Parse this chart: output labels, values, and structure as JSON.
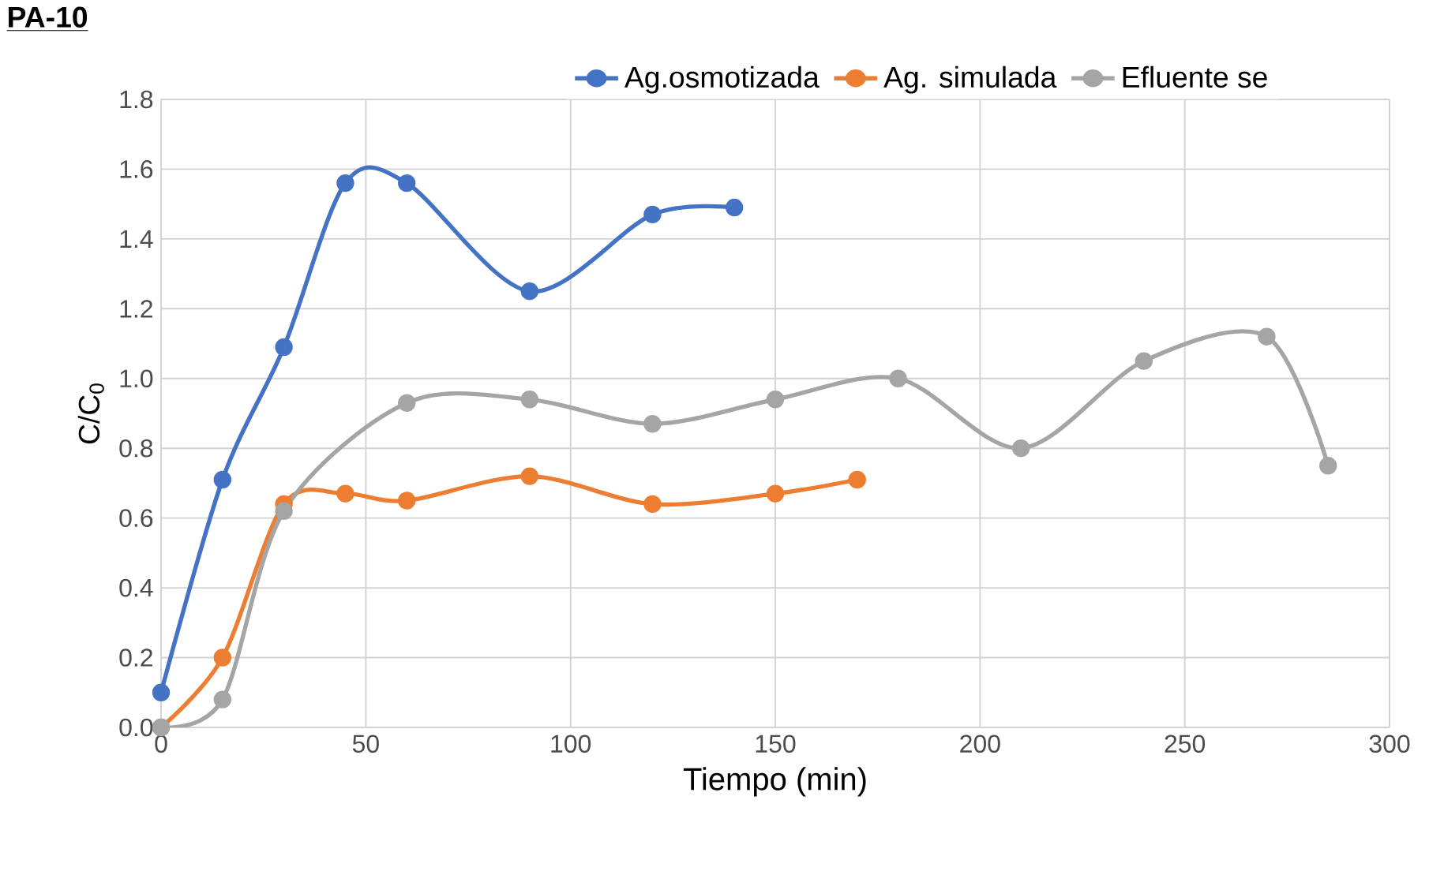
{
  "chart_data": {
    "type": "line",
    "title": "PA-10",
    "xlabel": "Tiempo (min)",
    "ylabel": "C/C$_{0}$",
    "xlim": [
      0,
      300
    ],
    "xticks": [
      0,
      50,
      100,
      150,
      200,
      250,
      300
    ],
    "ylim": [
      0,
      1.8
    ],
    "yticks": [
      {
        "value": 0,
        "label": "0.0"
      },
      0.2,
      0.4,
      0.6,
      0.8,
      {
        "value": 1,
        "label": "1.0"
      },
      1.2,
      1.4,
      1.6,
      1.8
    ],
    "grid": true,
    "legend": "top",
    "marker": "circle",
    "line_style": "solid",
    "series": [
      {
        "name": "Ag.osmotizada",
        "color": "#4472c4",
        "x": [
          0,
          15,
          30,
          45,
          60,
          90,
          120,
          140
        ],
        "values": [
          0.1,
          0.71,
          1.09,
          1.56,
          1.56,
          1.25,
          1.47,
          1.49
        ]
      },
      {
        "name": "Ag. simulada",
        "color": "#ed7d31",
        "x": [
          0,
          15,
          30,
          45,
          60,
          90,
          120,
          150,
          170
        ],
        "values": [
          0,
          0.2,
          0.64,
          0.67,
          0.65,
          0.72,
          0.64,
          0.67,
          0.71
        ]
      },
      {
        "name": "Efluente se",
        "color": "#a5a5a5",
        "x": [
          0,
          15,
          30,
          60,
          90,
          120,
          150,
          180,
          210,
          240,
          270,
          285
        ],
        "values": [
          0,
          0.08,
          0.62,
          0.93,
          0.94,
          0.87,
          0.94,
          1.0,
          0.8,
          1.05,
          1.12,
          0.75
        ]
      }
    ]
  }
}
